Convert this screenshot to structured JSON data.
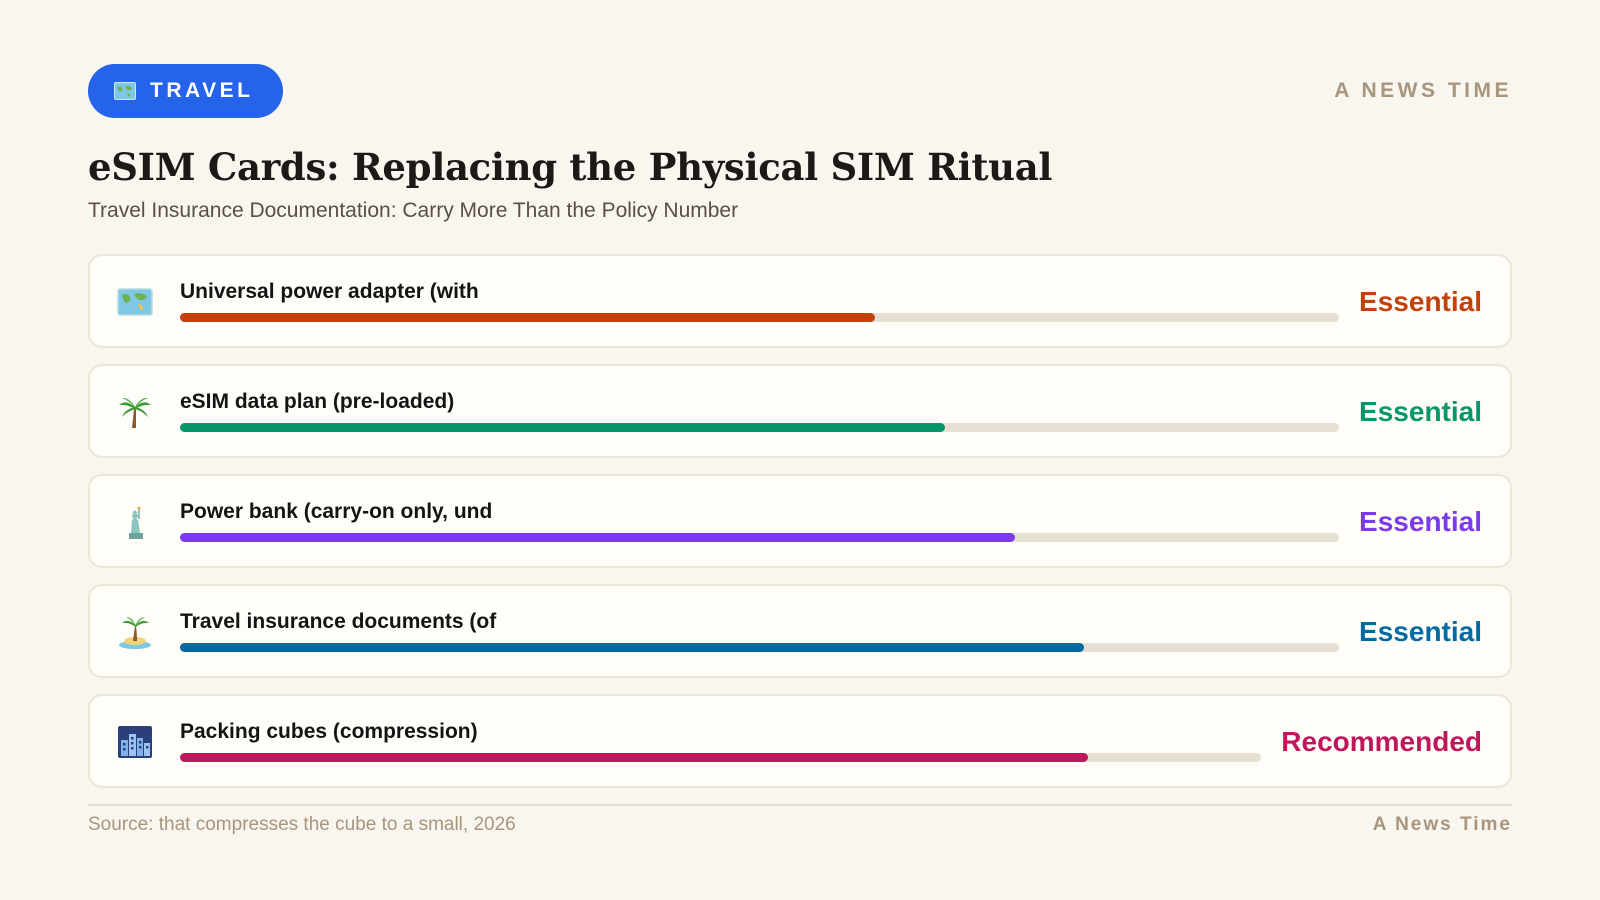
{
  "header": {
    "tag": {
      "label": "TRAVEL",
      "icon": "world-map-icon",
      "background": "#2563eb"
    },
    "brand": "A NEWS TIME",
    "title": "eSIM Cards: Replacing the Physical SIM Ritual",
    "subtitle": "Travel Insurance Documentation: Carry More Than the Policy Number"
  },
  "chart_data": {
    "type": "bar",
    "orientation": "horizontal",
    "xlim": [
      0,
      100
    ],
    "categories": [
      "Universal power adapter (with",
      "eSIM data plan (pre-loaded)",
      "Power bank (carry-on only, und",
      "Travel insurance documents (of",
      "Packing cubes (compression)"
    ],
    "values": [
      60,
      66,
      72,
      78,
      84
    ],
    "status_labels": [
      "Essential",
      "Essential",
      "Essential",
      "Essential",
      "Recommended"
    ],
    "colors": [
      "#c2410c",
      "#059669",
      "#7c3aed",
      "#0369a1",
      "#be185d"
    ],
    "icons": [
      "world-map-icon",
      "palm-tree-icon",
      "statue-of-liberty-icon",
      "desert-island-icon",
      "cityscape-icon"
    ],
    "track_color": "#e6dfd3"
  },
  "footer": {
    "source": "Source: that compresses the cube to a small, 2026",
    "brand": "A News Time"
  }
}
